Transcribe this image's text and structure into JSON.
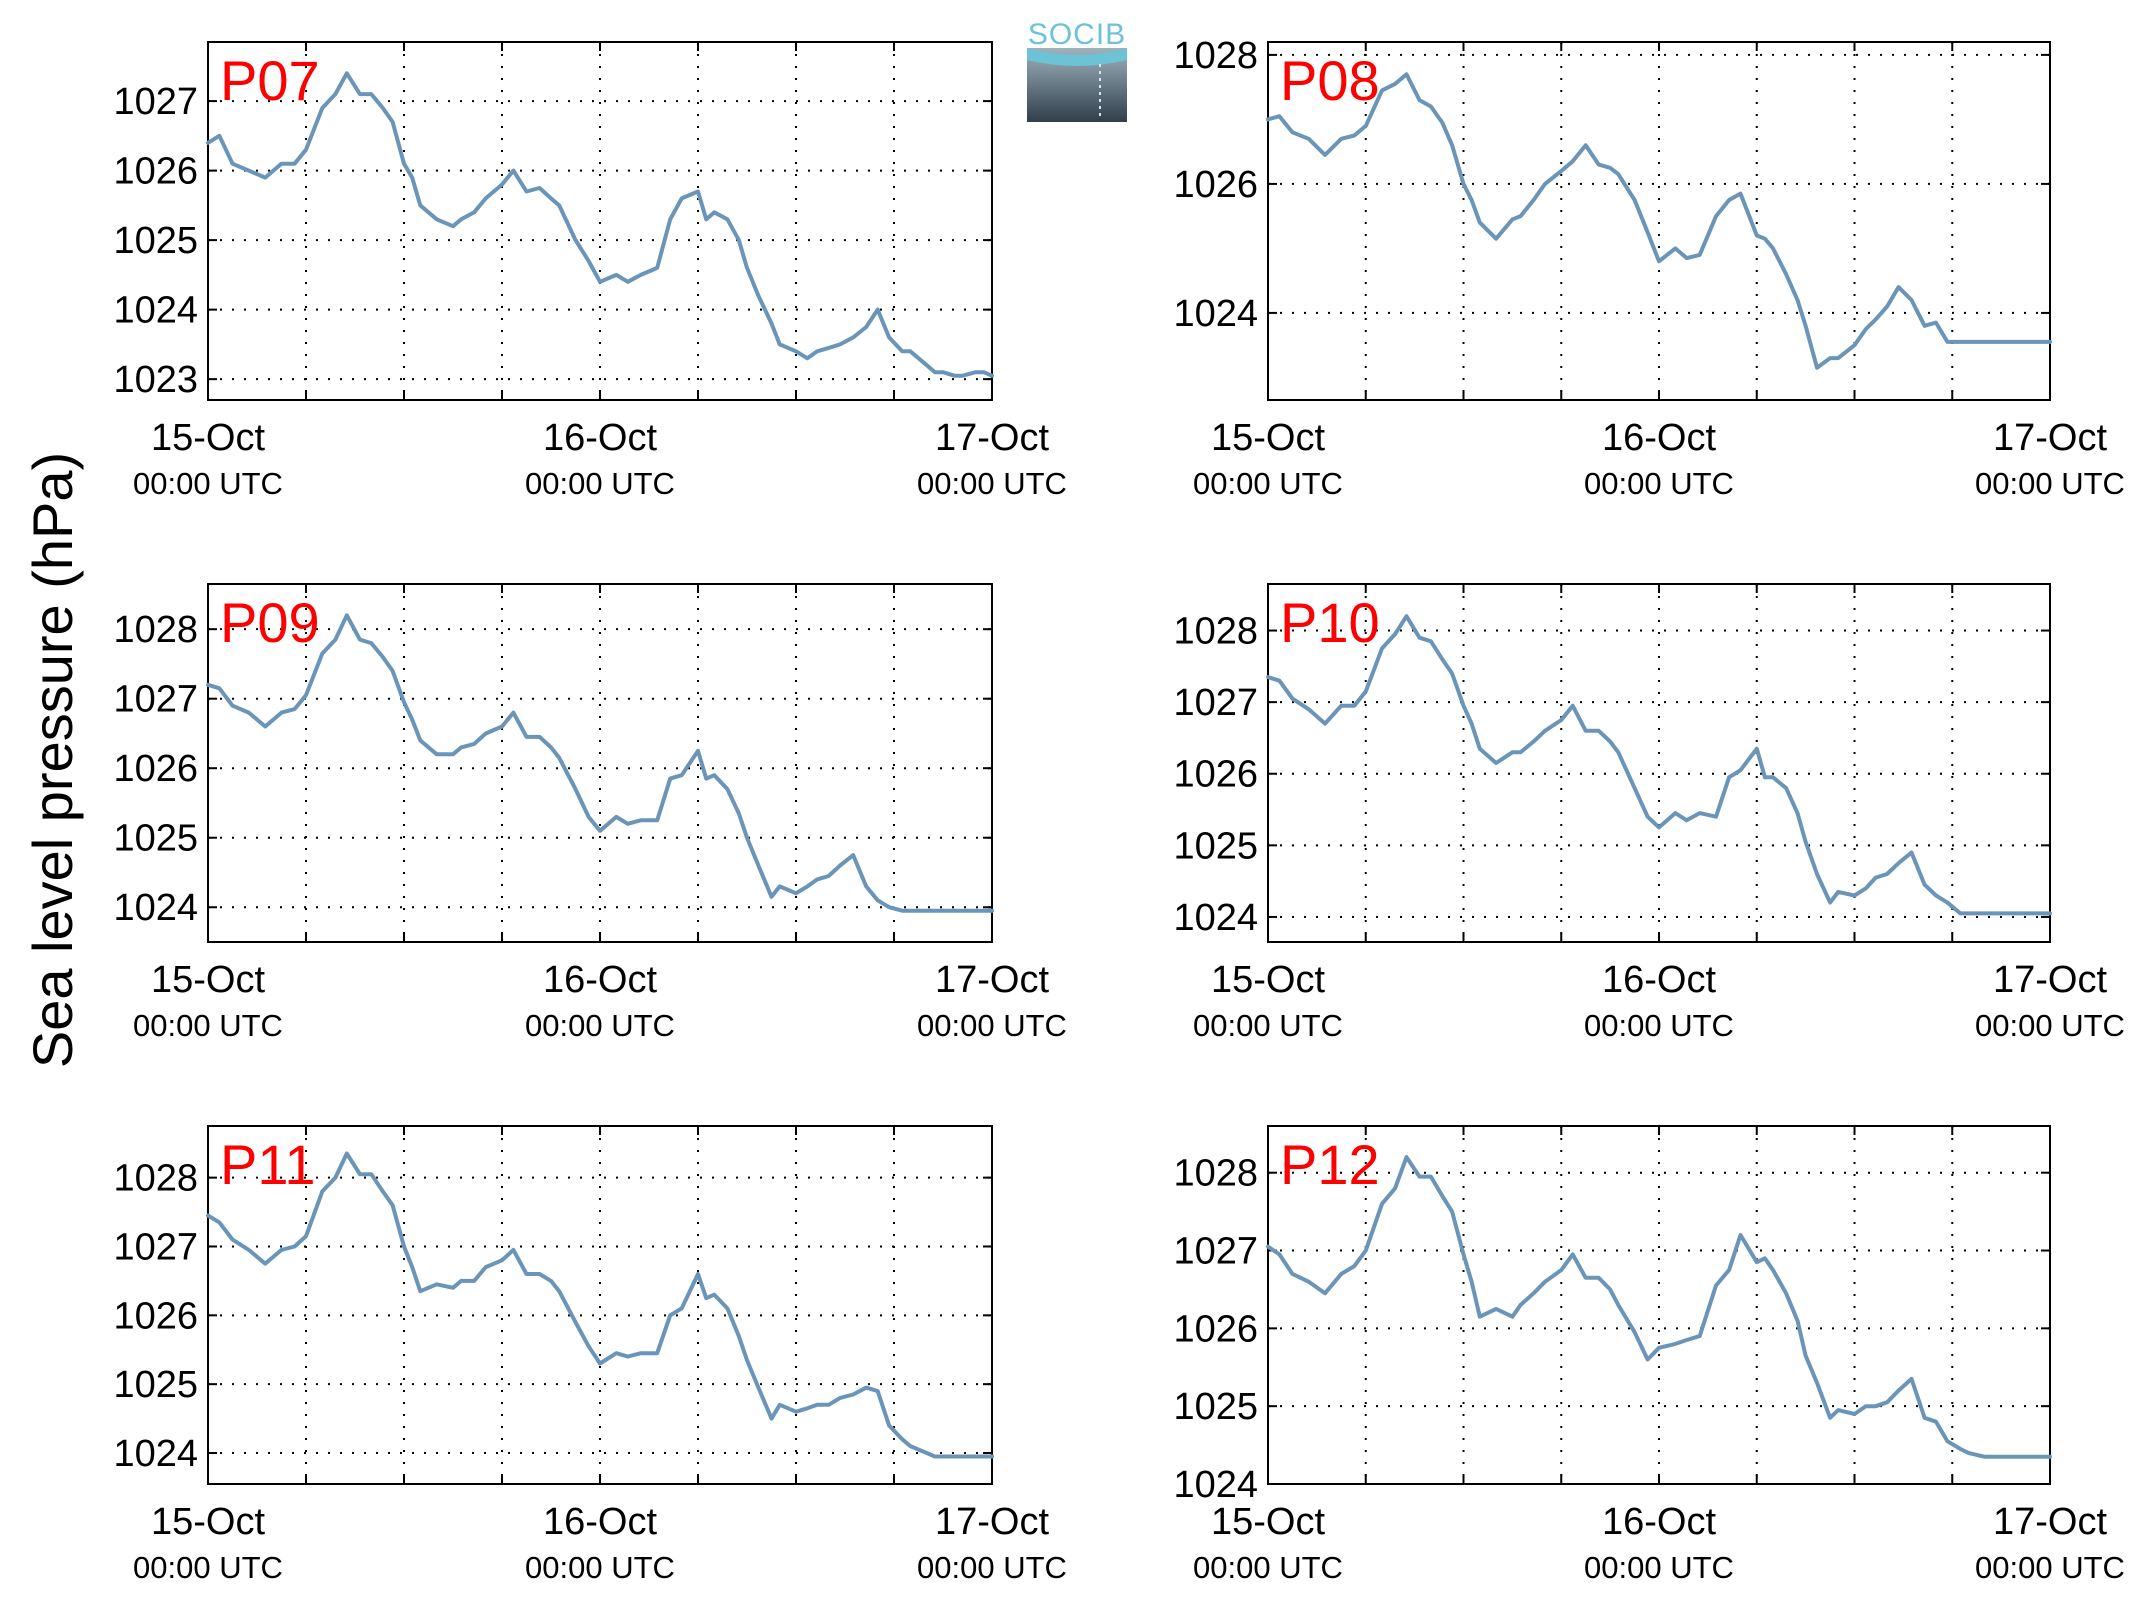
{
  "figure": {
    "ylabel": "Sea level pressure (hPa)",
    "logo_text": "SOCIB",
    "line_color": "#6a95b8",
    "label_color": "#ff0000"
  },
  "chart_data": [
    {
      "type": "line",
      "panel_label": "P07",
      "xlim": [
        0,
        48
      ],
      "ylim": [
        1022.7,
        1027.85
      ],
      "yticks": [
        1023,
        1024,
        1025,
        1026,
        1027
      ],
      "ytick_labels": [
        "1023",
        "1024",
        "1025",
        "1026",
        "1027"
      ],
      "xticks": [
        0,
        24,
        48
      ],
      "xtick_dates": [
        "15-Oct",
        "16-Oct",
        "17-Oct"
      ],
      "xtick_times": [
        "00:00 UTC",
        "00:00 UTC",
        "00:00 UTC"
      ],
      "grid": true,
      "x": [
        0,
        0.7,
        1.5,
        2.5,
        3.5,
        4.5,
        5.3,
        6,
        7,
        7.8,
        8.5,
        9.3,
        10,
        10.7,
        11.3,
        12,
        12.5,
        13,
        14,
        15,
        15.5,
        16.3,
        17,
        18,
        18.7,
        19.5,
        20.3,
        21,
        21.5,
        22.5,
        23.3,
        24,
        25,
        25.7,
        26.5,
        27.5,
        28.3,
        29,
        30,
        30.5,
        31,
        31.8,
        32.5,
        33,
        33.7,
        34.5,
        35,
        36,
        36.7,
        37.3,
        38,
        38.7,
        39.5,
        40.3,
        41,
        41.7,
        42.5,
        43,
        44,
        44.5,
        45,
        45.7,
        46.2,
        47,
        47.5,
        48
      ],
      "y": [
        1026.4,
        1026.5,
        1026.1,
        1026.0,
        1025.9,
        1026.1,
        1026.1,
        1026.3,
        1026.9,
        1027.1,
        1027.4,
        1027.1,
        1027.1,
        1026.9,
        1026.7,
        1026.1,
        1025.9,
        1025.5,
        1025.3,
        1025.2,
        1025.3,
        1025.4,
        1025.6,
        1025.8,
        1026.0,
        1025.7,
        1025.75,
        1025.6,
        1025.5,
        1025.0,
        1024.7,
        1024.4,
        1024.5,
        1024.4,
        1024.5,
        1024.6,
        1025.3,
        1025.6,
        1025.7,
        1025.3,
        1025.4,
        1025.3,
        1025.0,
        1024.6,
        1024.2,
        1023.8,
        1023.5,
        1023.4,
        1023.3,
        1023.4,
        1023.45,
        1023.5,
        1023.6,
        1023.75,
        1024.0,
        1023.6,
        1023.4,
        1023.4,
        1023.2,
        1023.1,
        1023.1,
        1023.05,
        1023.05,
        1023.1,
        1023.1,
        1023.05
      ]
    },
    {
      "type": "line",
      "panel_label": "P08",
      "xlim": [
        0,
        48
      ],
      "ylim": [
        1022.65,
        1028.2
      ],
      "yticks": [
        1024,
        1026,
        1028
      ],
      "ytick_labels": [
        "1024",
        "1026",
        "1028"
      ],
      "xticks": [
        0,
        24,
        48
      ],
      "xtick_dates": [
        "15-Oct",
        "16-Oct",
        "17-Oct"
      ],
      "xtick_times": [
        "00:00 UTC",
        "00:00 UTC",
        "00:00 UTC"
      ],
      "grid": true,
      "x": [
        0,
        0.7,
        1.5,
        2.5,
        3.5,
        4.5,
        5.3,
        6,
        7,
        7.8,
        8.5,
        9.3,
        10,
        10.7,
        11.3,
        12,
        12.5,
        13,
        14,
        15,
        15.5,
        16.3,
        17,
        18,
        18.7,
        19.5,
        20.3,
        21,
        21.5,
        22.5,
        23.3,
        24,
        25,
        25.7,
        26.5,
        27.5,
        28.3,
        29,
        30,
        30.5,
        31,
        31.8,
        32.5,
        33,
        33.7,
        34.5,
        35,
        36,
        36.7,
        37.3,
        38,
        38.7,
        39.5,
        40.3,
        41,
        41.7,
        42.5,
        43,
        44,
        44.5,
        45,
        45.7,
        46.2,
        47,
        47.5,
        48
      ],
      "y": [
        1027.0,
        1027.05,
        1026.8,
        1026.7,
        1026.45,
        1026.7,
        1026.75,
        1026.9,
        1027.45,
        1027.55,
        1027.7,
        1027.3,
        1027.2,
        1026.95,
        1026.6,
        1026.0,
        1025.75,
        1025.4,
        1025.15,
        1025.45,
        1025.5,
        1025.75,
        1026.0,
        1026.2,
        1026.35,
        1026.6,
        1026.3,
        1026.25,
        1026.15,
        1025.75,
        1025.25,
        1024.8,
        1025.0,
        1024.85,
        1024.9,
        1025.5,
        1025.75,
        1025.85,
        1025.2,
        1025.15,
        1025.0,
        1024.6,
        1024.2,
        1023.8,
        1023.15,
        1023.3,
        1023.3,
        1023.5,
        1023.75,
        1023.9,
        1024.1,
        1024.4,
        1024.2,
        1023.8,
        1023.85,
        1023.55,
        1023.55,
        1023.55,
        1023.55,
        1023.55,
        1023.55,
        1023.55,
        1023.55,
        1023.55,
        1023.55,
        1023.55
      ]
    },
    {
      "type": "line",
      "panel_label": "P09",
      "xlim": [
        0,
        48
      ],
      "ylim": [
        1023.5,
        1028.65
      ],
      "yticks": [
        1024,
        1025,
        1026,
        1027,
        1028
      ],
      "ytick_labels": [
        "1024",
        "1025",
        "1026",
        "1027",
        "1028"
      ],
      "xticks": [
        0,
        24,
        48
      ],
      "xtick_dates": [
        "15-Oct",
        "16-Oct",
        "17-Oct"
      ],
      "xtick_times": [
        "00:00 UTC",
        "00:00 UTC",
        "00:00 UTC"
      ],
      "grid": true,
      "x": [
        0,
        0.7,
        1.5,
        2.5,
        3.5,
        4.5,
        5.3,
        6,
        7,
        7.8,
        8.5,
        9.3,
        10,
        10.7,
        11.3,
        12,
        12.5,
        13,
        14,
        15,
        15.5,
        16.3,
        17,
        18,
        18.7,
        19.5,
        20.3,
        21,
        21.5,
        22.5,
        23.3,
        24,
        25,
        25.7,
        26.5,
        27.5,
        28.3,
        29,
        30,
        30.5,
        31,
        31.8,
        32.5,
        33,
        33.7,
        34.5,
        35,
        36,
        36.7,
        37.3,
        38,
        38.7,
        39.5,
        40.3,
        41,
        41.7,
        42.5,
        43,
        44,
        44.5,
        45,
        45.7,
        46.2,
        47,
        47.5,
        48
      ],
      "y": [
        1027.2,
        1027.15,
        1026.9,
        1026.8,
        1026.6,
        1026.8,
        1026.85,
        1027.05,
        1027.65,
        1027.85,
        1028.2,
        1027.85,
        1027.8,
        1027.6,
        1027.4,
        1026.95,
        1026.7,
        1026.4,
        1026.2,
        1026.2,
        1026.3,
        1026.35,
        1026.5,
        1026.6,
        1026.8,
        1026.45,
        1026.45,
        1026.3,
        1026.15,
        1025.7,
        1025.3,
        1025.1,
        1025.3,
        1025.2,
        1025.25,
        1025.25,
        1025.85,
        1025.9,
        1026.25,
        1025.85,
        1025.9,
        1025.7,
        1025.35,
        1025.0,
        1024.6,
        1024.15,
        1024.3,
        1024.2,
        1024.3,
        1024.4,
        1024.45,
        1024.6,
        1024.75,
        1024.3,
        1024.1,
        1024.0,
        1023.95,
        1023.95,
        1023.95,
        1023.95,
        1023.95,
        1023.95,
        1023.95,
        1023.95,
        1023.95,
        1023.95
      ]
    },
    {
      "type": "line",
      "panel_label": "P10",
      "xlim": [
        0,
        48
      ],
      "ylim": [
        1023.65,
        1028.65
      ],
      "yticks": [
        1024,
        1025,
        1026,
        1027,
        1028
      ],
      "ytick_labels": [
        "1024",
        "1025",
        "1026",
        "1027",
        "1028"
      ],
      "xticks": [
        0,
        24,
        48
      ],
      "xtick_dates": [
        "15-Oct",
        "16-Oct",
        "17-Oct"
      ],
      "xtick_times": [
        "00:00 UTC",
        "00:00 UTC",
        "00:00 UTC"
      ],
      "grid": true,
      "x": [
        0,
        0.7,
        1.5,
        2.5,
        3.5,
        4.5,
        5.3,
        6,
        7,
        7.8,
        8.5,
        9.3,
        10,
        10.7,
        11.3,
        12,
        12.5,
        13,
        14,
        15,
        15.5,
        16.3,
        17,
        18,
        18.7,
        19.5,
        20.3,
        21,
        21.5,
        22.5,
        23.3,
        24,
        25,
        25.7,
        26.5,
        27.5,
        28.3,
        29,
        30,
        30.5,
        31,
        31.8,
        32.5,
        33,
        33.7,
        34.5,
        35,
        36,
        36.7,
        37.3,
        38,
        38.7,
        39.5,
        40.3,
        41,
        41.7,
        42.5,
        43,
        44,
        44.5,
        45,
        45.7,
        46.2,
        47,
        47.5,
        48
      ],
      "y": [
        1027.35,
        1027.3,
        1027.05,
        1026.9,
        1026.7,
        1026.95,
        1026.95,
        1027.15,
        1027.75,
        1027.95,
        1028.2,
        1027.9,
        1027.85,
        1027.6,
        1027.4,
        1026.95,
        1026.7,
        1026.35,
        1026.15,
        1026.3,
        1026.3,
        1026.45,
        1026.6,
        1026.75,
        1026.95,
        1026.6,
        1026.6,
        1026.45,
        1026.3,
        1025.8,
        1025.4,
        1025.25,
        1025.45,
        1025.35,
        1025.45,
        1025.4,
        1025.95,
        1026.05,
        1026.35,
        1025.95,
        1025.95,
        1025.8,
        1025.45,
        1025.05,
        1024.6,
        1024.2,
        1024.35,
        1024.3,
        1024.4,
        1024.55,
        1024.6,
        1024.75,
        1024.9,
        1024.45,
        1024.3,
        1024.2,
        1024.05,
        1024.05,
        1024.05,
        1024.05,
        1024.05,
        1024.05,
        1024.05,
        1024.05,
        1024.05,
        1024.05
      ]
    },
    {
      "type": "line",
      "panel_label": "P11",
      "xlim": [
        0,
        48
      ],
      "ylim": [
        1023.55,
        1028.75
      ],
      "yticks": [
        1024,
        1025,
        1026,
        1027,
        1028
      ],
      "ytick_labels": [
        "1024",
        "1025",
        "1026",
        "1027",
        "1028"
      ],
      "xticks": [
        0,
        24,
        48
      ],
      "xtick_dates": [
        "15-Oct",
        "16-Oct",
        "17-Oct"
      ],
      "xtick_times": [
        "00:00 UTC",
        "00:00 UTC",
        "00:00 UTC"
      ],
      "grid": true,
      "x": [
        0,
        0.7,
        1.5,
        2.5,
        3.5,
        4.5,
        5.3,
        6,
        7,
        7.8,
        8.5,
        9.3,
        10,
        10.7,
        11.3,
        12,
        12.5,
        13,
        14,
        15,
        15.5,
        16.3,
        17,
        18,
        18.7,
        19.5,
        20.3,
        21,
        21.5,
        22.5,
        23.3,
        24,
        25,
        25.7,
        26.5,
        27.5,
        28.3,
        29,
        30,
        30.5,
        31,
        31.8,
        32.5,
        33,
        33.7,
        34.5,
        35,
        36,
        36.7,
        37.3,
        38,
        38.7,
        39.5,
        40.3,
        41,
        41.7,
        42.5,
        43,
        44,
        44.5,
        45,
        45.7,
        46.2,
        47,
        47.5,
        48
      ],
      "y": [
        1027.45,
        1027.35,
        1027.1,
        1026.95,
        1026.75,
        1026.95,
        1027.0,
        1027.15,
        1027.8,
        1028.0,
        1028.35,
        1028.05,
        1028.05,
        1027.8,
        1027.6,
        1027.0,
        1026.7,
        1026.35,
        1026.45,
        1026.4,
        1026.5,
        1026.5,
        1026.7,
        1026.8,
        1026.95,
        1026.6,
        1026.6,
        1026.5,
        1026.35,
        1025.9,
        1025.55,
        1025.3,
        1025.45,
        1025.4,
        1025.45,
        1025.45,
        1026.0,
        1026.1,
        1026.6,
        1026.25,
        1026.3,
        1026.1,
        1025.7,
        1025.35,
        1024.95,
        1024.5,
        1024.7,
        1024.6,
        1024.65,
        1024.7,
        1024.7,
        1024.8,
        1024.85,
        1024.95,
        1024.9,
        1024.4,
        1024.2,
        1024.1,
        1024.0,
        1023.95,
        1023.95,
        1023.95,
        1023.95,
        1023.95,
        1023.95,
        1023.95
      ]
    },
    {
      "type": "line",
      "panel_label": "P12",
      "xlim": [
        0,
        48
      ],
      "ylim": [
        1024.0,
        1028.6
      ],
      "yticks": [
        1024,
        1025,
        1026,
        1027,
        1028
      ],
      "ytick_labels": [
        "1024",
        "1025",
        "1026",
        "1027",
        "1028"
      ],
      "xticks": [
        0,
        24,
        48
      ],
      "xtick_dates": [
        "15-Oct",
        "16-Oct",
        "17-Oct"
      ],
      "xtick_times": [
        "00:00 UTC",
        "00:00 UTC",
        "00:00 UTC"
      ],
      "grid": true,
      "x": [
        0,
        0.7,
        1.5,
        2.5,
        3.5,
        4.5,
        5.3,
        6,
        7,
        7.8,
        8.5,
        9.3,
        10,
        10.7,
        11.3,
        12,
        12.5,
        13,
        14,
        15,
        15.5,
        16.3,
        17,
        18,
        18.7,
        19.5,
        20.3,
        21,
        21.5,
        22.5,
        23.3,
        24,
        25,
        25.7,
        26.5,
        27.5,
        28.3,
        29,
        30,
        30.5,
        31,
        31.8,
        32.5,
        33,
        33.7,
        34.5,
        35,
        36,
        36.7,
        37.3,
        38,
        38.7,
        39.5,
        40.3,
        41,
        41.7,
        42.5,
        43,
        44,
        44.5,
        45,
        45.7,
        46.2,
        47,
        47.5,
        48
      ],
      "y": [
        1027.05,
        1026.95,
        1026.7,
        1026.6,
        1026.45,
        1026.7,
        1026.8,
        1027.0,
        1027.6,
        1027.8,
        1028.2,
        1027.95,
        1027.95,
        1027.7,
        1027.5,
        1026.95,
        1026.6,
        1026.15,
        1026.25,
        1026.15,
        1026.3,
        1026.45,
        1026.6,
        1026.75,
        1026.95,
        1026.65,
        1026.65,
        1026.5,
        1026.3,
        1025.95,
        1025.6,
        1025.75,
        1025.8,
        1025.85,
        1025.9,
        1026.55,
        1026.75,
        1027.2,
        1026.85,
        1026.9,
        1026.75,
        1026.45,
        1026.1,
        1025.65,
        1025.3,
        1024.85,
        1024.95,
        1024.9,
        1025.0,
        1025.0,
        1025.05,
        1025.2,
        1025.35,
        1024.85,
        1024.8,
        1024.55,
        1024.45,
        1024.4,
        1024.35,
        1024.35,
        1024.35,
        1024.35,
        1024.35,
        1024.35,
        1024.35,
        1024.35
      ]
    }
  ]
}
